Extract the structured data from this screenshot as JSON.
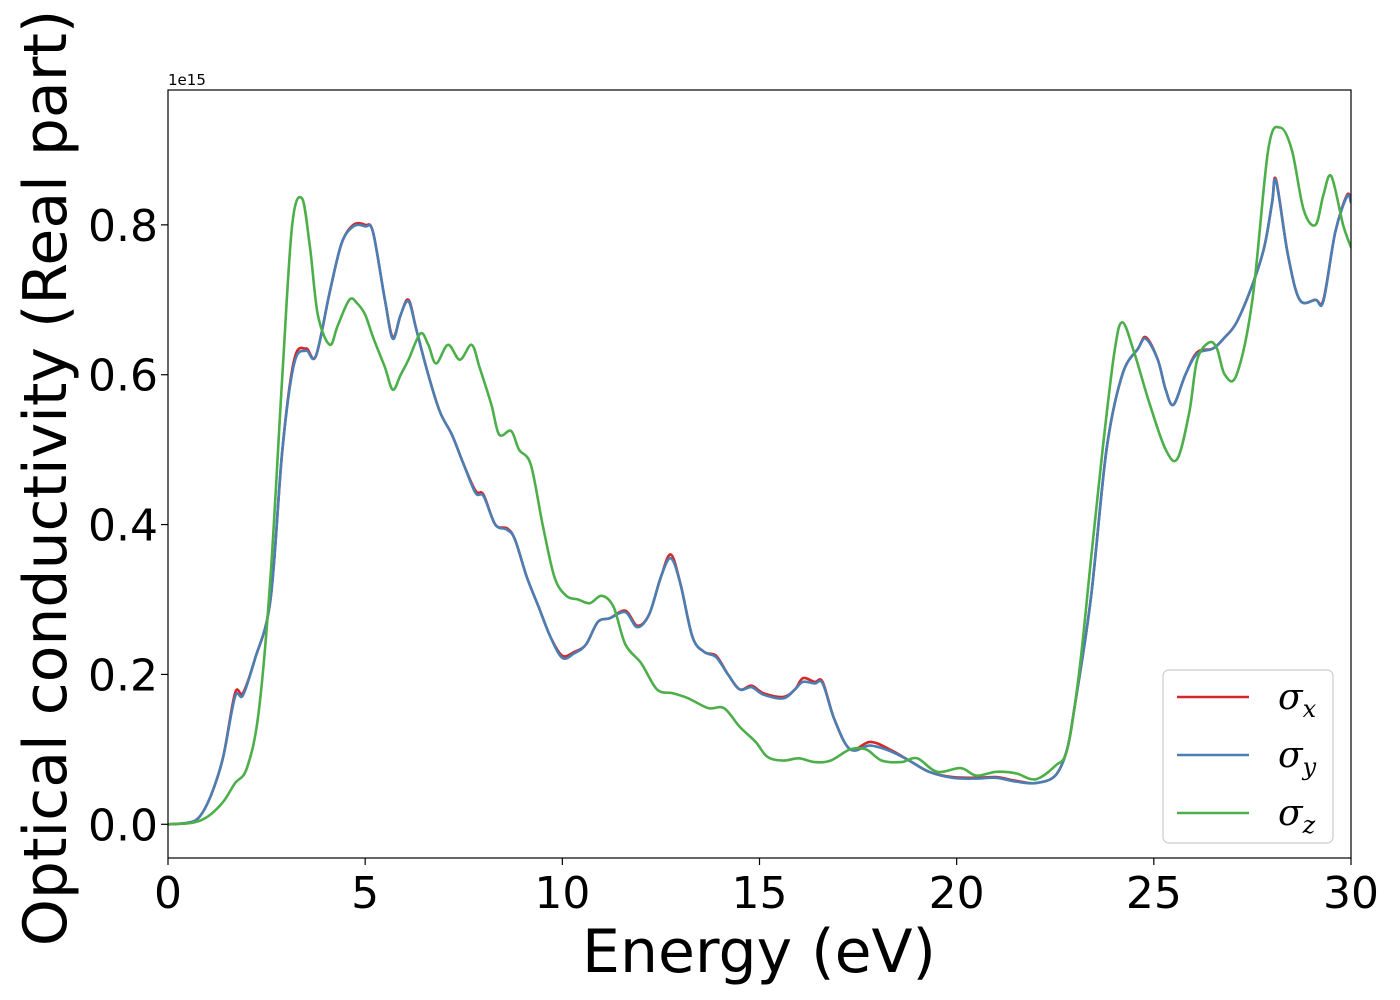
{
  "chart_data": {
    "type": "line",
    "title": "",
    "xlabel": "Energy (eV)",
    "ylabel": "Optical conductivity (Real part)",
    "offset_text": "1e15",
    "xlim": [
      0,
      30
    ],
    "ylim": [
      -0.045,
      0.98
    ],
    "xticks": [
      0,
      5,
      10,
      15,
      20,
      25,
      30
    ],
    "xtick_labels": [
      "0",
      "5",
      "10",
      "15",
      "20",
      "25",
      "30"
    ],
    "yticks": [
      0.0,
      0.2,
      0.4,
      0.6,
      0.8
    ],
    "ytick_labels": [
      "0.0",
      "0.2",
      "0.4",
      "0.6",
      "0.8"
    ],
    "grid": false,
    "legend": "lower-right",
    "series": [
      {
        "name": "σx",
        "symbol": "σ",
        "subscript": "x",
        "color": "#d62728",
        "points": [
          [
            0,
            0
          ],
          [
            0.5,
            0.002
          ],
          [
            0.8,
            0.01
          ],
          [
            1.1,
            0.04
          ],
          [
            1.4,
            0.09
          ],
          [
            1.7,
            0.175
          ],
          [
            1.9,
            0.175
          ],
          [
            2.2,
            0.22
          ],
          [
            2.6,
            0.3
          ],
          [
            2.9,
            0.5
          ],
          [
            3.2,
            0.62
          ],
          [
            3.5,
            0.635
          ],
          [
            3.75,
            0.625
          ],
          [
            4.1,
            0.71
          ],
          [
            4.4,
            0.775
          ],
          [
            4.7,
            0.8
          ],
          [
            5.0,
            0.8
          ],
          [
            5.2,
            0.79
          ],
          [
            5.5,
            0.7
          ],
          [
            5.7,
            0.65
          ],
          [
            5.9,
            0.68
          ],
          [
            6.1,
            0.7
          ],
          [
            6.3,
            0.66
          ],
          [
            6.6,
            0.6
          ],
          [
            6.9,
            0.55
          ],
          [
            7.2,
            0.52
          ],
          [
            7.5,
            0.48
          ],
          [
            7.8,
            0.445
          ],
          [
            8.0,
            0.44
          ],
          [
            8.3,
            0.4
          ],
          [
            8.6,
            0.395
          ],
          [
            8.8,
            0.38
          ],
          [
            9.1,
            0.33
          ],
          [
            9.4,
            0.29
          ],
          [
            9.7,
            0.25
          ],
          [
            10.0,
            0.225
          ],
          [
            10.3,
            0.23
          ],
          [
            10.6,
            0.24
          ],
          [
            10.9,
            0.27
          ],
          [
            11.2,
            0.275
          ],
          [
            11.6,
            0.285
          ],
          [
            11.9,
            0.265
          ],
          [
            12.2,
            0.28
          ],
          [
            12.5,
            0.33
          ],
          [
            12.75,
            0.36
          ],
          [
            13.0,
            0.32
          ],
          [
            13.3,
            0.25
          ],
          [
            13.6,
            0.23
          ],
          [
            13.9,
            0.225
          ],
          [
            14.2,
            0.2
          ],
          [
            14.5,
            0.18
          ],
          [
            14.8,
            0.185
          ],
          [
            15.1,
            0.175
          ],
          [
            15.6,
            0.17
          ],
          [
            15.9,
            0.18
          ],
          [
            16.1,
            0.195
          ],
          [
            16.4,
            0.19
          ],
          [
            16.6,
            0.19
          ],
          [
            16.9,
            0.14
          ],
          [
            17.3,
            0.1
          ],
          [
            17.8,
            0.11
          ],
          [
            18.3,
            0.1
          ],
          [
            18.8,
            0.085
          ],
          [
            19.3,
            0.07
          ],
          [
            19.9,
            0.063
          ],
          [
            20.5,
            0.062
          ],
          [
            21.0,
            0.063
          ],
          [
            21.5,
            0.058
          ],
          [
            22.0,
            0.055
          ],
          [
            22.5,
            0.065
          ],
          [
            22.8,
            0.1
          ],
          [
            23.0,
            0.16
          ],
          [
            23.4,
            0.3
          ],
          [
            23.8,
            0.5
          ],
          [
            24.2,
            0.6
          ],
          [
            24.6,
            0.635
          ],
          [
            24.8,
            0.65
          ],
          [
            25.1,
            0.62
          ],
          [
            25.3,
            0.58
          ],
          [
            25.5,
            0.56
          ],
          [
            25.8,
            0.6
          ],
          [
            26.1,
            0.63
          ],
          [
            26.5,
            0.635
          ],
          [
            26.8,
            0.65
          ],
          [
            27.1,
            0.67
          ],
          [
            27.5,
            0.72
          ],
          [
            27.8,
            0.77
          ],
          [
            28.0,
            0.83
          ],
          [
            28.1,
            0.86
          ],
          [
            28.4,
            0.76
          ],
          [
            28.7,
            0.7
          ],
          [
            29.1,
            0.7
          ],
          [
            29.3,
            0.7
          ],
          [
            29.6,
            0.79
          ],
          [
            29.9,
            0.84
          ],
          [
            30,
            0.83
          ]
        ]
      },
      {
        "name": "σy",
        "symbol": "σ",
        "subscript": "y",
        "color": "#4a7fb4",
        "points": [
          [
            0,
            0
          ],
          [
            0.5,
            0.002
          ],
          [
            0.8,
            0.01
          ],
          [
            1.1,
            0.04
          ],
          [
            1.4,
            0.09
          ],
          [
            1.7,
            0.17
          ],
          [
            1.9,
            0.172
          ],
          [
            2.2,
            0.22
          ],
          [
            2.6,
            0.3
          ],
          [
            2.9,
            0.5
          ],
          [
            3.2,
            0.615
          ],
          [
            3.5,
            0.632
          ],
          [
            3.75,
            0.625
          ],
          [
            4.1,
            0.71
          ],
          [
            4.4,
            0.775
          ],
          [
            4.7,
            0.798
          ],
          [
            5.0,
            0.798
          ],
          [
            5.2,
            0.79
          ],
          [
            5.5,
            0.7
          ],
          [
            5.7,
            0.648
          ],
          [
            5.9,
            0.68
          ],
          [
            6.1,
            0.698
          ],
          [
            6.3,
            0.66
          ],
          [
            6.6,
            0.6
          ],
          [
            6.9,
            0.55
          ],
          [
            7.2,
            0.52
          ],
          [
            7.5,
            0.48
          ],
          [
            7.8,
            0.442
          ],
          [
            8.0,
            0.438
          ],
          [
            8.3,
            0.4
          ],
          [
            8.6,
            0.393
          ],
          [
            8.8,
            0.38
          ],
          [
            9.1,
            0.33
          ],
          [
            9.4,
            0.29
          ],
          [
            9.7,
            0.25
          ],
          [
            10.0,
            0.222
          ],
          [
            10.3,
            0.228
          ],
          [
            10.6,
            0.24
          ],
          [
            10.9,
            0.27
          ],
          [
            11.2,
            0.275
          ],
          [
            11.6,
            0.283
          ],
          [
            11.9,
            0.263
          ],
          [
            12.2,
            0.28
          ],
          [
            12.5,
            0.33
          ],
          [
            12.75,
            0.355
          ],
          [
            13.0,
            0.32
          ],
          [
            13.3,
            0.25
          ],
          [
            13.6,
            0.23
          ],
          [
            13.9,
            0.223
          ],
          [
            14.2,
            0.2
          ],
          [
            14.5,
            0.18
          ],
          [
            14.8,
            0.183
          ],
          [
            15.1,
            0.173
          ],
          [
            15.6,
            0.168
          ],
          [
            15.9,
            0.18
          ],
          [
            16.1,
            0.19
          ],
          [
            16.4,
            0.188
          ],
          [
            16.6,
            0.188
          ],
          [
            16.9,
            0.14
          ],
          [
            17.3,
            0.1
          ],
          [
            17.8,
            0.105
          ],
          [
            18.3,
            0.098
          ],
          [
            18.8,
            0.085
          ],
          [
            19.3,
            0.07
          ],
          [
            19.9,
            0.062
          ],
          [
            20.5,
            0.061
          ],
          [
            21.0,
            0.062
          ],
          [
            21.5,
            0.057
          ],
          [
            22.0,
            0.055
          ],
          [
            22.5,
            0.065
          ],
          [
            22.8,
            0.1
          ],
          [
            23.0,
            0.16
          ],
          [
            23.4,
            0.3
          ],
          [
            23.8,
            0.5
          ],
          [
            24.2,
            0.6
          ],
          [
            24.6,
            0.635
          ],
          [
            24.8,
            0.648
          ],
          [
            25.1,
            0.62
          ],
          [
            25.3,
            0.58
          ],
          [
            25.5,
            0.56
          ],
          [
            25.8,
            0.6
          ],
          [
            26.1,
            0.628
          ],
          [
            26.5,
            0.635
          ],
          [
            26.8,
            0.65
          ],
          [
            27.1,
            0.67
          ],
          [
            27.5,
            0.72
          ],
          [
            27.8,
            0.77
          ],
          [
            28.0,
            0.83
          ],
          [
            28.1,
            0.858
          ],
          [
            28.4,
            0.76
          ],
          [
            28.7,
            0.7
          ],
          [
            29.1,
            0.7
          ],
          [
            29.3,
            0.698
          ],
          [
            29.6,
            0.79
          ],
          [
            29.9,
            0.838
          ],
          [
            30,
            0.83
          ]
        ]
      },
      {
        "name": "σz",
        "symbol": "σ",
        "subscript": "z",
        "color": "#4daf4a",
        "points": [
          [
            0,
            0
          ],
          [
            0.6,
            0.002
          ],
          [
            1.0,
            0.01
          ],
          [
            1.4,
            0.03
          ],
          [
            1.7,
            0.055
          ],
          [
            2.0,
            0.075
          ],
          [
            2.3,
            0.15
          ],
          [
            2.6,
            0.33
          ],
          [
            2.9,
            0.6
          ],
          [
            3.15,
            0.8
          ],
          [
            3.4,
            0.835
          ],
          [
            3.6,
            0.77
          ],
          [
            3.8,
            0.68
          ],
          [
            4.1,
            0.64
          ],
          [
            4.3,
            0.665
          ],
          [
            4.6,
            0.7
          ],
          [
            4.8,
            0.695
          ],
          [
            5.0,
            0.68
          ],
          [
            5.2,
            0.65
          ],
          [
            5.5,
            0.61
          ],
          [
            5.7,
            0.58
          ],
          [
            5.9,
            0.6
          ],
          [
            6.1,
            0.62
          ],
          [
            6.4,
            0.655
          ],
          [
            6.6,
            0.64
          ],
          [
            6.8,
            0.615
          ],
          [
            7.1,
            0.64
          ],
          [
            7.4,
            0.62
          ],
          [
            7.7,
            0.64
          ],
          [
            7.9,
            0.61
          ],
          [
            8.2,
            0.56
          ],
          [
            8.4,
            0.52
          ],
          [
            8.7,
            0.525
          ],
          [
            8.9,
            0.5
          ],
          [
            9.2,
            0.48
          ],
          [
            9.5,
            0.4
          ],
          [
            9.8,
            0.33
          ],
          [
            10.1,
            0.305
          ],
          [
            10.4,
            0.3
          ],
          [
            10.7,
            0.295
          ],
          [
            11.0,
            0.305
          ],
          [
            11.3,
            0.29
          ],
          [
            11.6,
            0.24
          ],
          [
            12.0,
            0.215
          ],
          [
            12.4,
            0.18
          ],
          [
            12.8,
            0.175
          ],
          [
            13.2,
            0.168
          ],
          [
            13.7,
            0.155
          ],
          [
            14.1,
            0.155
          ],
          [
            14.5,
            0.13
          ],
          [
            14.9,
            0.11
          ],
          [
            15.2,
            0.09
          ],
          [
            15.6,
            0.085
          ],
          [
            16.0,
            0.088
          ],
          [
            16.4,
            0.083
          ],
          [
            16.8,
            0.085
          ],
          [
            17.3,
            0.1
          ],
          [
            17.7,
            0.1
          ],
          [
            18.1,
            0.085
          ],
          [
            18.6,
            0.083
          ],
          [
            19.0,
            0.088
          ],
          [
            19.5,
            0.07
          ],
          [
            20.1,
            0.075
          ],
          [
            20.5,
            0.065
          ],
          [
            21.0,
            0.07
          ],
          [
            21.5,
            0.068
          ],
          [
            22.0,
            0.06
          ],
          [
            22.5,
            0.078
          ],
          [
            22.8,
            0.1
          ],
          [
            23.1,
            0.2
          ],
          [
            23.4,
            0.35
          ],
          [
            23.7,
            0.5
          ],
          [
            24.0,
            0.63
          ],
          [
            24.2,
            0.67
          ],
          [
            24.5,
            0.63
          ],
          [
            24.9,
            0.56
          ],
          [
            25.3,
            0.5
          ],
          [
            25.6,
            0.488
          ],
          [
            25.9,
            0.55
          ],
          [
            26.1,
            0.62
          ],
          [
            26.4,
            0.643
          ],
          [
            26.6,
            0.635
          ],
          [
            26.8,
            0.6
          ],
          [
            27.1,
            0.6
          ],
          [
            27.5,
            0.7
          ],
          [
            27.9,
            0.9
          ],
          [
            28.2,
            0.93
          ],
          [
            28.5,
            0.9
          ],
          [
            28.8,
            0.82
          ],
          [
            29.1,
            0.8
          ],
          [
            29.3,
            0.84
          ],
          [
            29.5,
            0.865
          ],
          [
            29.8,
            0.8
          ],
          [
            30,
            0.77
          ]
        ]
      }
    ]
  }
}
